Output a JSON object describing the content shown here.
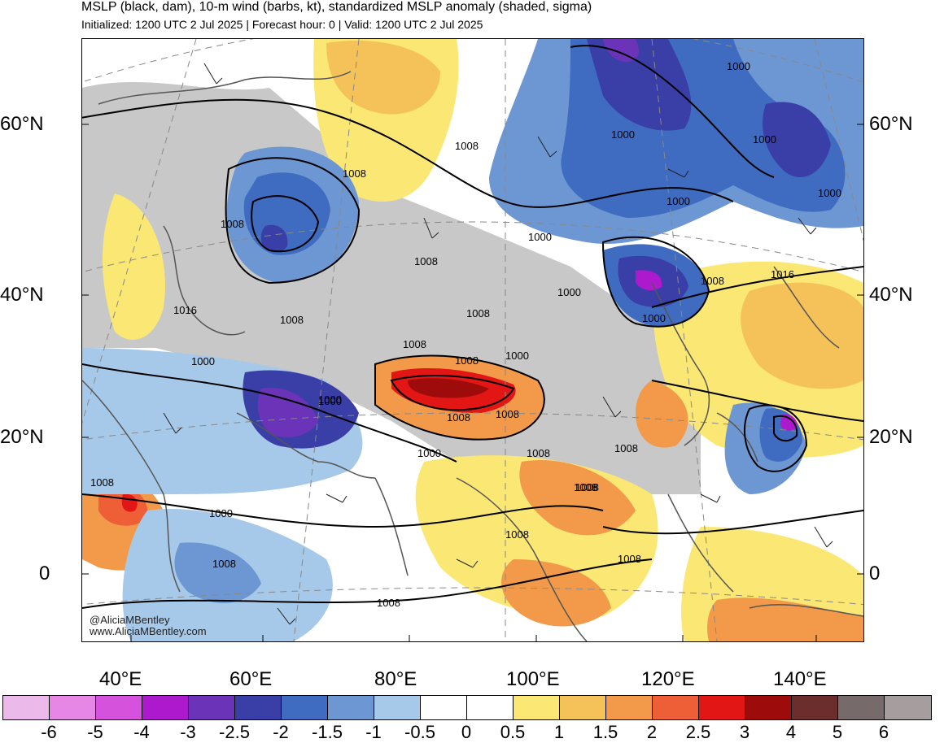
{
  "header": {
    "title": "MSLP (black, dam), 10-m wind (barbs, kt), standardized MSLP anomaly (shaded, sigma)",
    "subtitle": "Initialized: 1200 UTC 2 Jul 2025 | Forecast hour: 0 | Valid: 1200 UTC 2 Jul 2025"
  },
  "map": {
    "lat_labels_left": [
      "60°N",
      "40°N",
      "20°N",
      "0"
    ],
    "lat_labels_right": [
      "60°N",
      "40°N",
      "20°N",
      "0"
    ],
    "lon_labels": [
      "40°E",
      "60°E",
      "80°E",
      "100°E",
      "120°E",
      "140°E"
    ],
    "isobar_labels": [
      "1008",
      "1016",
      "1000",
      "1008",
      "1008",
      "1000",
      "1008",
      "1008",
      "1008",
      "1000",
      "1008",
      "1008",
      "1000",
      "1008",
      "1000",
      "1008",
      "1000",
      "1008",
      "1008",
      "1000",
      "1000",
      "1000",
      "1000",
      "1000",
      "1008",
      "1016",
      "1000",
      "1008",
      "1000",
      "1008",
      "1008",
      "1008",
      "1000",
      "1008",
      "1008",
      "1008"
    ],
    "watermark_handle": "@AliciaMBentley",
    "watermark_site": "www.AliciaMBentley.com"
  },
  "colorbar": {
    "colors": [
      "#ebb9ea",
      "#e687e6",
      "#d552dd",
      "#ad19cc",
      "#6a33b8",
      "#3a3ea7",
      "#3f6cc0",
      "#6d97d2",
      "#a6c9e9",
      "#ffffff",
      "#ffffff",
      "#fbe774",
      "#f5c25a",
      "#f29a4a",
      "#ee5f38",
      "#e31616",
      "#9e0b0b",
      "#6c2d2d",
      "#776a6a",
      "#a69e9e"
    ],
    "tick_labels": [
      "-6",
      "-5",
      "-4",
      "-3",
      "-2.5",
      "-2",
      "-1.5",
      "-1",
      "-0.5",
      "0",
      "0.5",
      "1",
      "1.5",
      "2",
      "2.5",
      "3",
      "4",
      "5",
      "6"
    ]
  }
}
